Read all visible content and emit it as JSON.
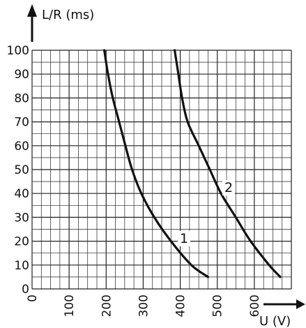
{
  "chart_data": {
    "type": "line",
    "title": "",
    "xlabel": "U (V)",
    "ylabel": "L/R (ms)",
    "xlim": [
      0,
      700
    ],
    "ylim": [
      0,
      100
    ],
    "x_ticks": [
      "0",
      "100",
      "200",
      "300",
      "400",
      "500",
      "600"
    ],
    "y_ticks": [
      "0",
      "10",
      "20",
      "30",
      "40",
      "50",
      "60",
      "70",
      "80",
      "90",
      "100"
    ],
    "grid": true,
    "series": [
      {
        "name": "1",
        "points": [
          [
            195,
            100
          ],
          [
            205,
            90
          ],
          [
            218,
            80
          ],
          [
            235,
            70
          ],
          [
            252,
            60
          ],
          [
            270,
            50
          ],
          [
            295,
            40
          ],
          [
            330,
            30
          ],
          [
            375,
            20
          ],
          [
            430,
            10
          ],
          [
            475,
            5
          ]
        ]
      },
      {
        "name": "2",
        "points": [
          [
            385,
            100
          ],
          [
            395,
            90
          ],
          [
            405,
            80
          ],
          [
            420,
            70
          ],
          [
            450,
            60
          ],
          [
            480,
            50
          ],
          [
            510,
            40
          ],
          [
            550,
            30
          ],
          [
            590,
            20
          ],
          [
            640,
            10
          ],
          [
            670,
            5
          ]
        ]
      }
    ]
  }
}
